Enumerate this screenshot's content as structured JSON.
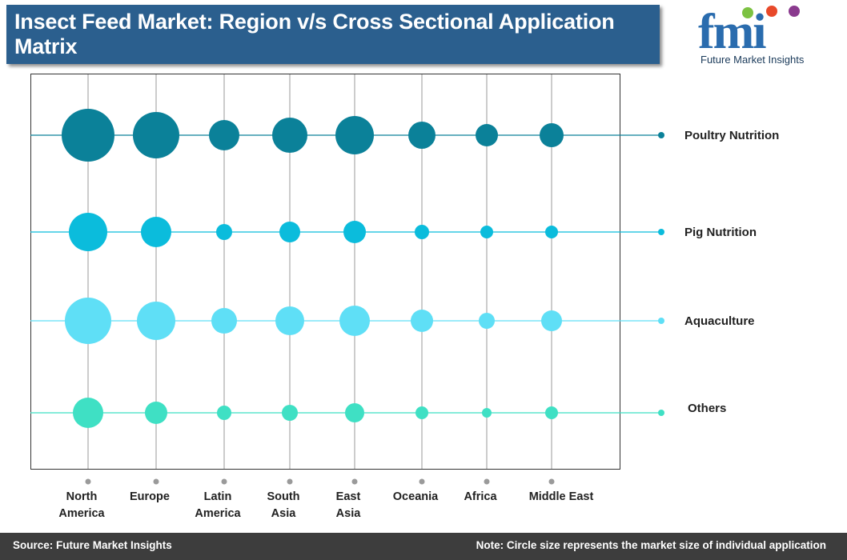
{
  "header": {
    "title": "Insect Feed Market: Region v/s Cross Sectional Application Matrix"
  },
  "logo": {
    "letters": "fmi",
    "caption": "Future Market Insights"
  },
  "footer": {
    "source": "Source: Future Market Insights",
    "note": "Note: Circle size represents the market size of individual application"
  },
  "chart_data": {
    "type": "scatter",
    "title": "Insect Feed Market: Region v/s Cross Sectional Application Matrix",
    "categories": [
      [
        "North",
        "America"
      ],
      [
        "Europe"
      ],
      [
        "Latin",
        "America"
      ],
      [
        "South",
        "Asia"
      ],
      [
        "East",
        "Asia"
      ],
      [
        "Oceania"
      ],
      [
        "Africa"
      ],
      [
        "Middle East"
      ]
    ],
    "series": [
      {
        "name": "Poultry Nutrition",
        "color": "#0b8199",
        "values": [
          33,
          29,
          19,
          22,
          24,
          17,
          14,
          15
        ]
      },
      {
        "name": "Pig Nutrition",
        "color": "#0bbcdc",
        "values": [
          24,
          19,
          10,
          13,
          14,
          9,
          8,
          8
        ]
      },
      {
        "name": "Aquaculture",
        "color": "#5fdff6",
        "values": [
          29,
          24,
          16,
          18,
          19,
          14,
          10,
          13
        ]
      },
      {
        "name": "Others",
        "color": "#3fe0c4",
        "values": [
          19,
          14,
          9,
          10,
          12,
          8,
          6,
          8
        ]
      }
    ],
    "legend": "right",
    "grid": true
  }
}
